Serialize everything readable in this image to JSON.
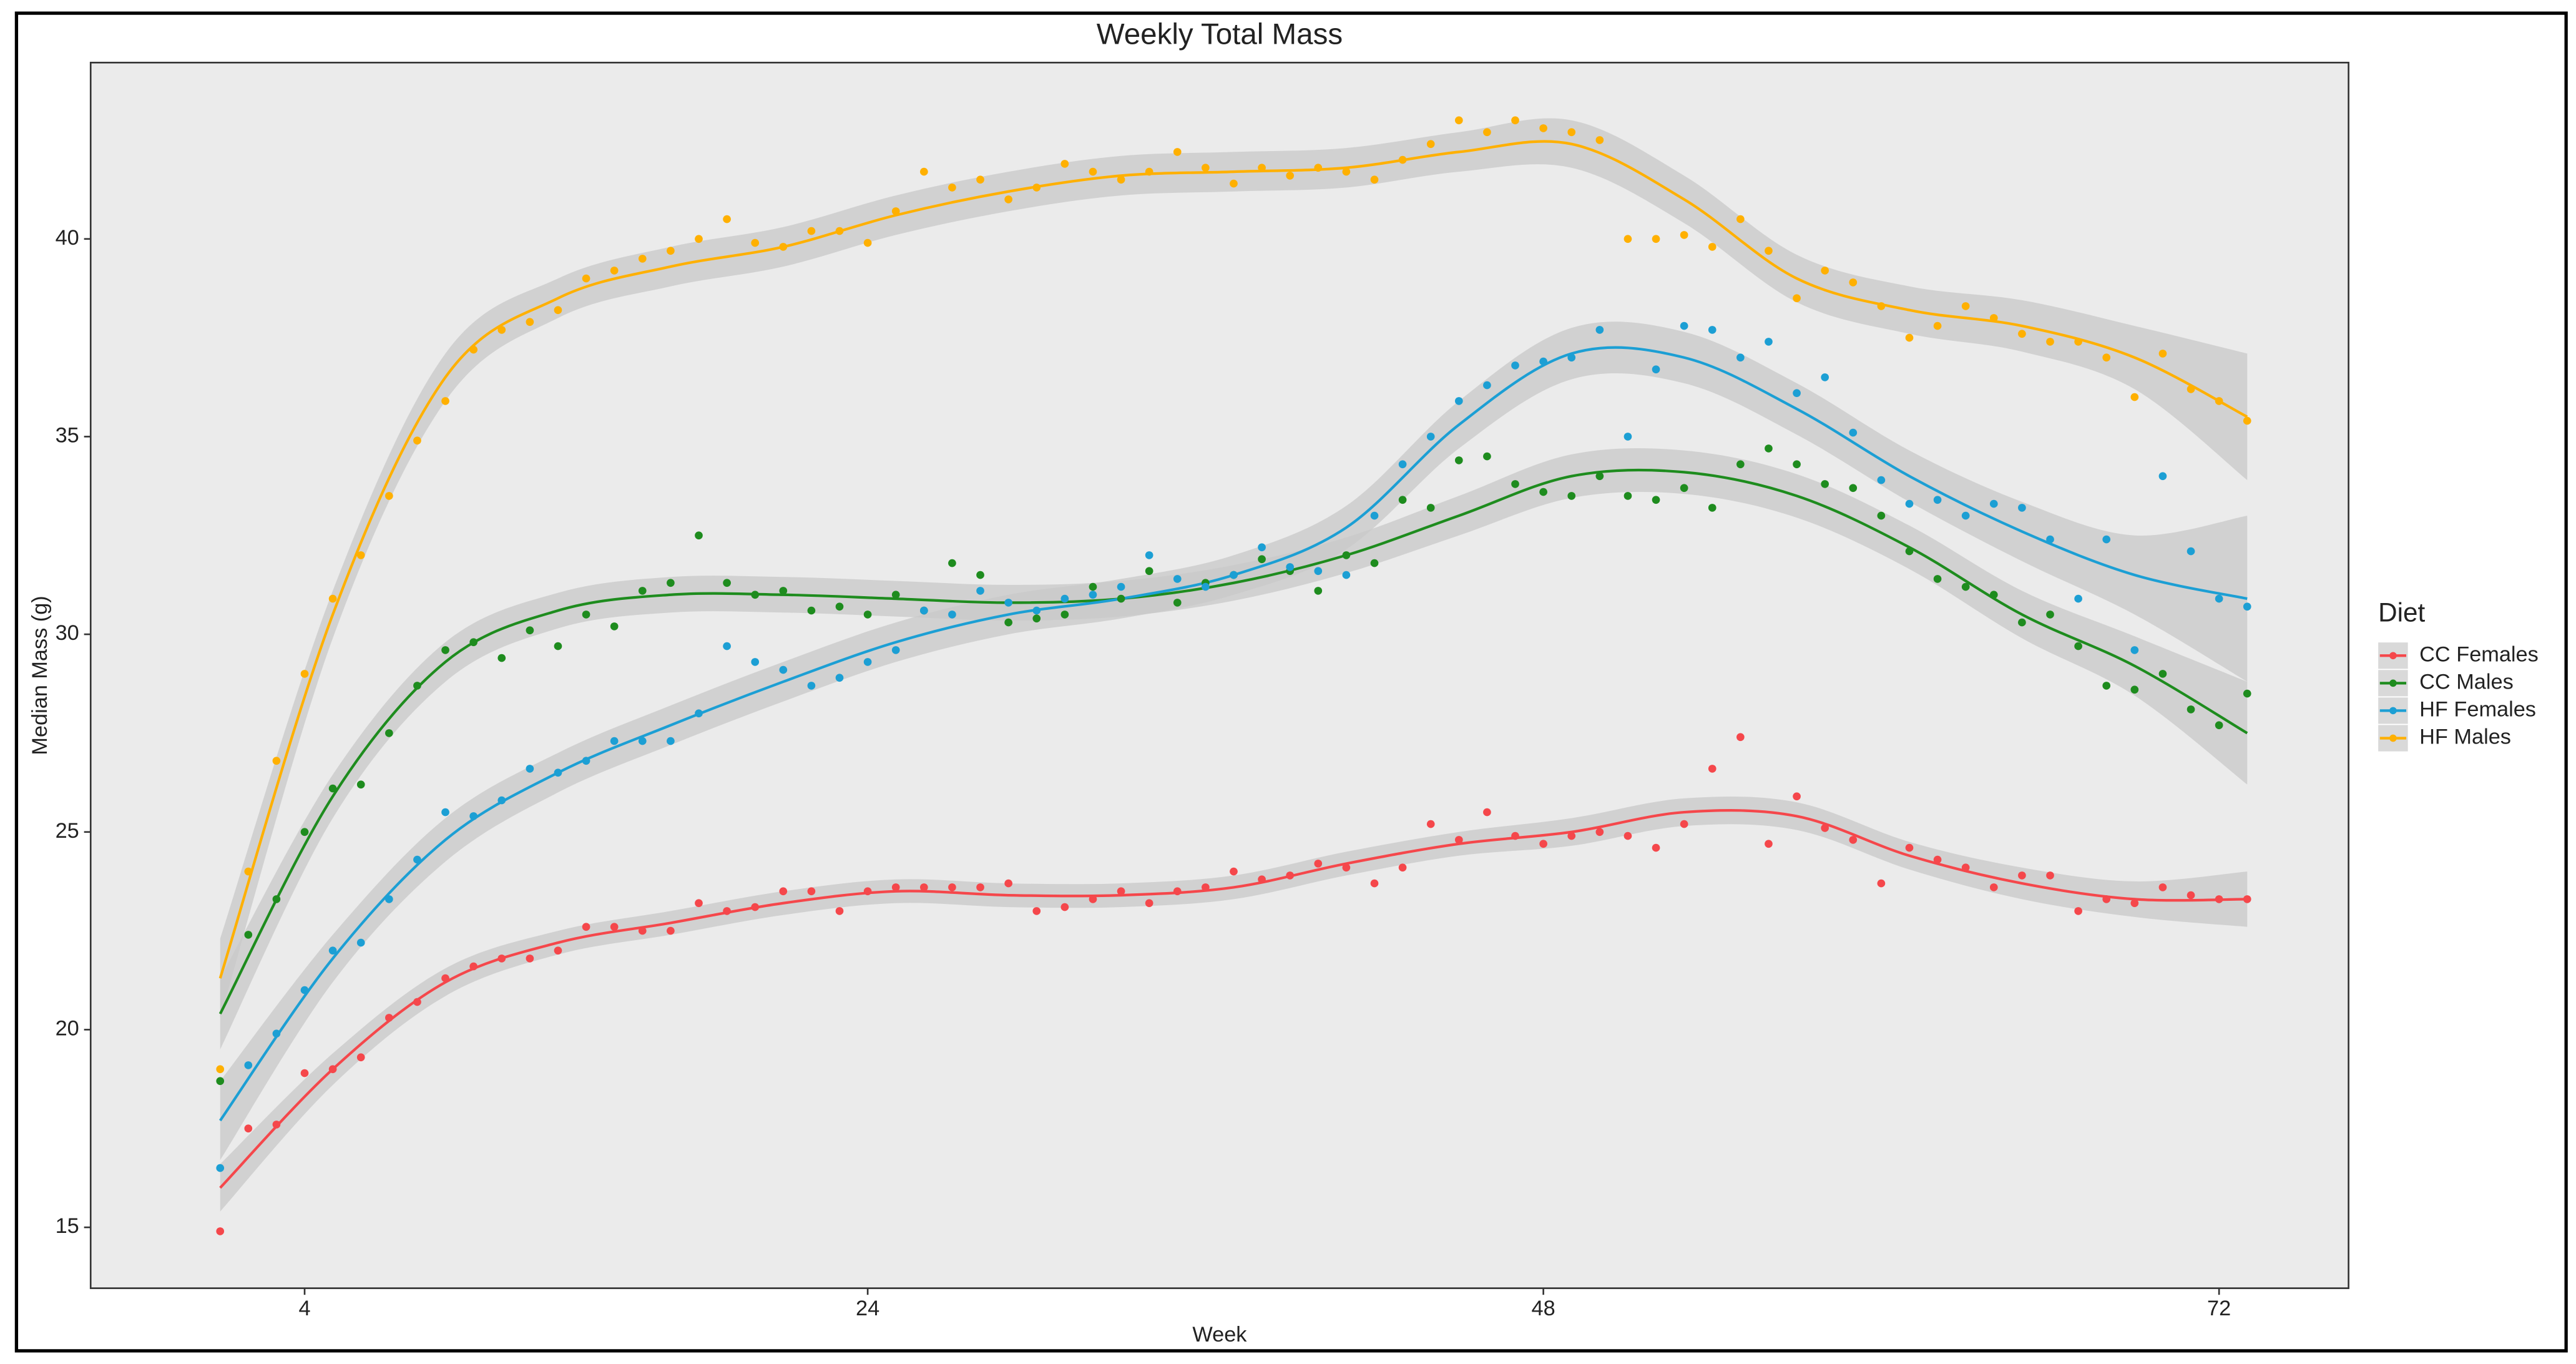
{
  "chart_data": {
    "type": "scatter",
    "title": "Weekly Total Mass",
    "x_label": "Week",
    "y_label": "Median Mass (g)",
    "legend_title": "Diet",
    "legend": "right",
    "grid": false,
    "xlim": [
      -3.6,
      76.6
    ],
    "ylim": [
      13.46,
      44.46
    ],
    "xticks": [
      4,
      24,
      48,
      72
    ],
    "yticks": [
      15,
      20,
      25,
      30,
      35,
      40
    ],
    "x": [
      1,
      2,
      3,
      4,
      5,
      6,
      7,
      8,
      9,
      10,
      11,
      12,
      13,
      14,
      15,
      16,
      17,
      18,
      19,
      20,
      21,
      22,
      23,
      24,
      25,
      26,
      27,
      28,
      29,
      30,
      31,
      32,
      33,
      34,
      35,
      36,
      37,
      38,
      39,
      40,
      41,
      42,
      43,
      44,
      45,
      46,
      47,
      48,
      49,
      50,
      51,
      52,
      53,
      54,
      55,
      56,
      57,
      58,
      59,
      60,
      61,
      62,
      63,
      64,
      65,
      66,
      67,
      68,
      69,
      70,
      71,
      72,
      73
    ],
    "fit_x": [
      1,
      5,
      9,
      13,
      17,
      21,
      25,
      29,
      33,
      37,
      41,
      45,
      49,
      53,
      57,
      61,
      65,
      69,
      73
    ],
    "series": [
      {
        "name": "CC Females",
        "color": "#f5474b",
        "values": [
          14.9,
          17.5,
          17.6,
          18.9,
          19.0,
          19.3,
          20.3,
          20.7,
          21.3,
          21.6,
          21.8,
          21.8,
          22.0,
          22.6,
          22.6,
          22.5,
          22.5,
          23.2,
          23.0,
          23.1,
          23.5,
          23.5,
          23.0,
          23.5,
          23.6,
          23.6,
          23.6,
          23.6,
          23.7,
          23.0,
          23.1,
          23.3,
          23.5,
          23.2,
          23.5,
          23.6,
          24.0,
          23.8,
          23.9,
          24.2,
          24.1,
          23.7,
          24.1,
          25.2,
          24.8,
          25.5,
          24.9,
          24.7,
          24.9,
          25.0,
          24.9,
          24.6,
          25.2,
          26.6,
          27.4,
          24.7,
          25.9,
          25.1,
          24.8,
          23.7,
          24.6,
          24.3,
          24.1,
          23.6,
          23.9,
          23.9,
          23.0,
          23.3,
          23.2,
          23.6,
          23.4,
          23.3,
          23.3
        ],
        "fit": [
          16.0,
          19.0,
          21.2,
          22.2,
          22.7,
          23.2,
          23.5,
          23.4,
          23.4,
          23.6,
          24.2,
          24.7,
          25.0,
          25.5,
          25.4,
          24.4,
          23.7,
          23.3,
          23.3
        ],
        "ci_halfwidth": [
          0.6,
          0.4,
          0.35,
          0.3,
          0.3,
          0.3,
          0.3,
          0.3,
          0.3,
          0.3,
          0.3,
          0.3,
          0.35,
          0.35,
          0.35,
          0.35,
          0.4,
          0.45,
          0.7
        ]
      },
      {
        "name": "CC Males",
        "color": "#1e8c1e",
        "values": [
          18.7,
          22.4,
          23.3,
          25.0,
          26.1,
          26.2,
          27.5,
          28.7,
          29.6,
          29.8,
          29.4,
          30.1,
          29.7,
          30.5,
          30.2,
          31.1,
          31.3,
          32.5,
          31.3,
          31.0,
          31.1,
          30.6,
          30.7,
          30.5,
          31.0,
          30.6,
          31.8,
          31.5,
          30.3,
          30.4,
          30.5,
          31.2,
          30.9,
          31.6,
          30.8,
          31.3,
          31.5,
          31.9,
          31.6,
          31.1,
          32.0,
          31.8,
          33.4,
          33.2,
          34.4,
          34.5,
          33.8,
          33.6,
          33.5,
          34.0,
          33.5,
          33.4,
          33.7,
          33.2,
          34.3,
          34.7,
          34.3,
          33.8,
          33.7,
          33.0,
          32.1,
          31.4,
          31.2,
          31.0,
          30.3,
          30.5,
          29.7,
          28.7,
          28.6,
          29.0,
          28.1,
          27.7,
          28.5
        ],
        "fit": [
          20.4,
          25.9,
          29.3,
          30.6,
          31.0,
          31.0,
          30.9,
          30.8,
          30.9,
          31.3,
          32.0,
          33.0,
          34.0,
          34.1,
          33.5,
          32.2,
          30.5,
          29.2,
          27.5
        ],
        "ci_halfwidth": [
          0.9,
          0.55,
          0.5,
          0.45,
          0.45,
          0.45,
          0.45,
          0.45,
          0.45,
          0.45,
          0.45,
          0.5,
          0.55,
          0.55,
          0.55,
          0.55,
          0.6,
          0.75,
          1.3
        ]
      },
      {
        "name": "HF Females",
        "color": "#1c9fd4",
        "values": [
          16.5,
          19.1,
          19.9,
          21.0,
          22.0,
          22.2,
          23.3,
          24.3,
          25.5,
          25.4,
          25.8,
          26.6,
          26.5,
          26.8,
          27.3,
          27.3,
          27.3,
          28.0,
          29.7,
          29.3,
          29.1,
          28.7,
          28.9,
          29.3,
          29.6,
          30.6,
          30.5,
          31.1,
          30.8,
          30.6,
          30.9,
          31.0,
          31.2,
          32.0,
          31.4,
          31.2,
          31.5,
          32.2,
          31.7,
          31.6,
          31.5,
          33.0,
          34.3,
          35.0,
          35.9,
          36.3,
          36.8,
          36.9,
          37.0,
          37.7,
          35.0,
          36.7,
          37.8,
          37.7,
          37.0,
          37.4,
          36.1,
          36.5,
          35.1,
          33.9,
          33.3,
          33.4,
          33.0,
          33.3,
          33.2,
          32.4,
          30.9,
          32.4,
          29.6,
          34.0,
          32.1,
          30.9,
          30.7
        ],
        "fit": [
          17.7,
          21.8,
          24.8,
          26.5,
          27.7,
          28.8,
          29.8,
          30.5,
          30.9,
          31.5,
          32.7,
          35.3,
          37.1,
          37.0,
          35.7,
          34.0,
          32.6,
          31.5,
          30.9
        ],
        "ci_halfwidth": [
          1.0,
          0.6,
          0.55,
          0.5,
          0.5,
          0.5,
          0.5,
          0.5,
          0.5,
          0.5,
          0.55,
          0.6,
          0.65,
          0.65,
          0.65,
          0.65,
          0.75,
          1.0,
          2.1
        ]
      },
      {
        "name": "HF Males",
        "color": "#ffb000",
        "values": [
          19.0,
          24.0,
          26.8,
          29.0,
          30.9,
          32.0,
          33.5,
          34.9,
          35.9,
          37.2,
          37.7,
          37.9,
          38.2,
          39.0,
          39.2,
          39.5,
          39.7,
          40.0,
          40.5,
          39.9,
          39.8,
          40.2,
          40.2,
          39.9,
          40.7,
          41.7,
          41.3,
          41.5,
          41.0,
          41.3,
          41.9,
          41.7,
          41.5,
          41.7,
          42.2,
          41.8,
          41.4,
          41.8,
          41.6,
          41.8,
          41.7,
          41.5,
          42.0,
          42.4,
          43.0,
          42.7,
          43.0,
          42.8,
          42.7,
          42.5,
          40.0,
          40.0,
          40.1,
          39.8,
          40.5,
          39.7,
          38.5,
          39.2,
          38.9,
          38.3,
          37.5,
          37.8,
          38.3,
          38.0,
          37.6,
          37.4,
          37.4,
          37.0,
          36.0,
          37.1,
          36.2,
          35.9,
          35.4
        ],
        "fit": [
          21.3,
          30.5,
          36.5,
          38.5,
          39.3,
          39.8,
          40.6,
          41.2,
          41.6,
          41.7,
          41.8,
          42.2,
          42.4,
          41.0,
          39.0,
          38.2,
          37.8,
          37.0,
          35.5
        ],
        "ci_halfwidth": [
          1.0,
          0.6,
          0.6,
          0.5,
          0.5,
          0.5,
          0.5,
          0.5,
          0.5,
          0.5,
          0.5,
          0.5,
          0.6,
          0.6,
          0.6,
          0.6,
          0.65,
          0.8,
          1.6
        ]
      }
    ]
  }
}
